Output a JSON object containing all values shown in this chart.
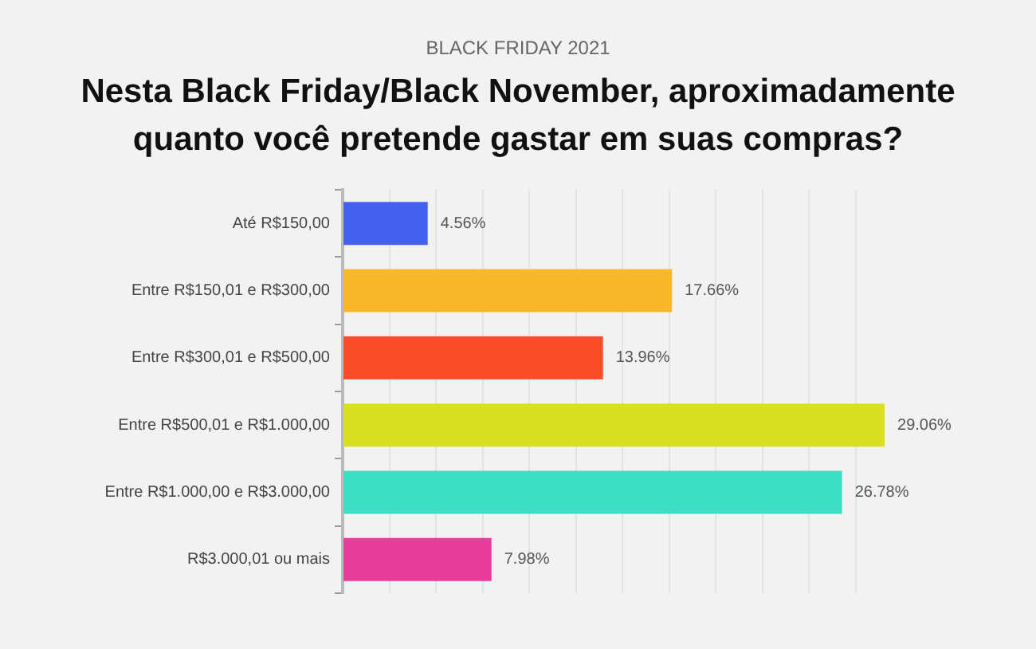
{
  "chart_data": {
    "type": "bar",
    "orientation": "horizontal",
    "subtitle": "BLACK FRIDAY 2021",
    "title": "Nesta Black Friday/Black November, aproximadamente quanto você pretende gastar em suas compras?",
    "categories": [
      "Até R$150,00",
      "Entre R$150,01 e R$300,00",
      "Entre R$300,01 e R$500,00",
      "Entre R$500,01 e R$1.000,00",
      "Entre R$1.000,00 e R$3.000,00",
      "R$3.000,01 ou mais"
    ],
    "values": [
      4.56,
      17.66,
      13.96,
      29.06,
      26.78,
      7.98
    ],
    "value_labels": [
      "4.56%",
      "17.66%",
      "13.96%",
      "29.06%",
      "26.78%",
      "7.98%"
    ],
    "colors": [
      "#4361ee",
      "#f7b92b",
      "#f94d2a",
      "#d9e021",
      "#3ddfc3",
      "#e83e9a"
    ],
    "xticks": [
      {
        "value": 0,
        "label": null
      },
      {
        "value": 2.5,
        "label": null
      },
      {
        "value": 5,
        "label": null
      },
      {
        "value": 7.5,
        "label": null
      },
      {
        "value": 10,
        "label": null
      },
      {
        "value": 12.5,
        "label": null
      },
      {
        "value": 15,
        "label": null
      },
      {
        "value": 17.5,
        "label": null
      },
      {
        "value": 20,
        "label": null
      },
      {
        "value": 22.5,
        "label": null
      },
      {
        "value": 25,
        "label": null
      },
      {
        "value": 27.5,
        "label": null
      }
    ],
    "grid": "x",
    "tick_labels": "y"
  }
}
